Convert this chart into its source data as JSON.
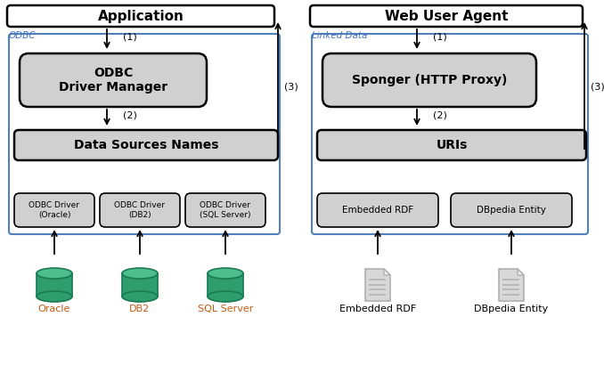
{
  "fig_w": 6.78,
  "fig_h": 4.38,
  "dpi": 100,
  "bg": "#ffffff",
  "gray": "#d0d0d0",
  "white": "#ffffff",
  "black": "#000000",
  "blue": "#4f81bd",
  "orange": "#c55a11",
  "blue_italic": "#4472c4",
  "green_dark": "#1a7a50",
  "green_mid": "#2e9e6e",
  "green_light": "#4dbf8e",
  "doc_gray": "#b0b0b0",
  "doc_fill": "#d8d8d8",
  "left_title": "Application",
  "right_title": "Web User Agent",
  "left_label": "ODBC",
  "right_label": "Linked Data",
  "left_manager": "ODBC\nDriver Manager",
  "right_manager": "Sponger (HTTP Proxy)",
  "left_dsn": "Data Sources Names",
  "right_dsn": "URIs",
  "left_drivers": [
    "ODBC Driver\n(Oracle)",
    "ODBC Driver\n(DB2)",
    "ODBC Driver\n(SQL Server)"
  ],
  "right_drivers": [
    "Embedded RDF",
    "DBpedia Entity"
  ],
  "left_db_labels": [
    "Oracle",
    "DB2",
    "SQL Server"
  ],
  "right_doc_labels": [
    "Embedded RDF",
    "DBpedia Entity"
  ],
  "s1": "(1)",
  "s2": "(2)",
  "s3": "(3)"
}
